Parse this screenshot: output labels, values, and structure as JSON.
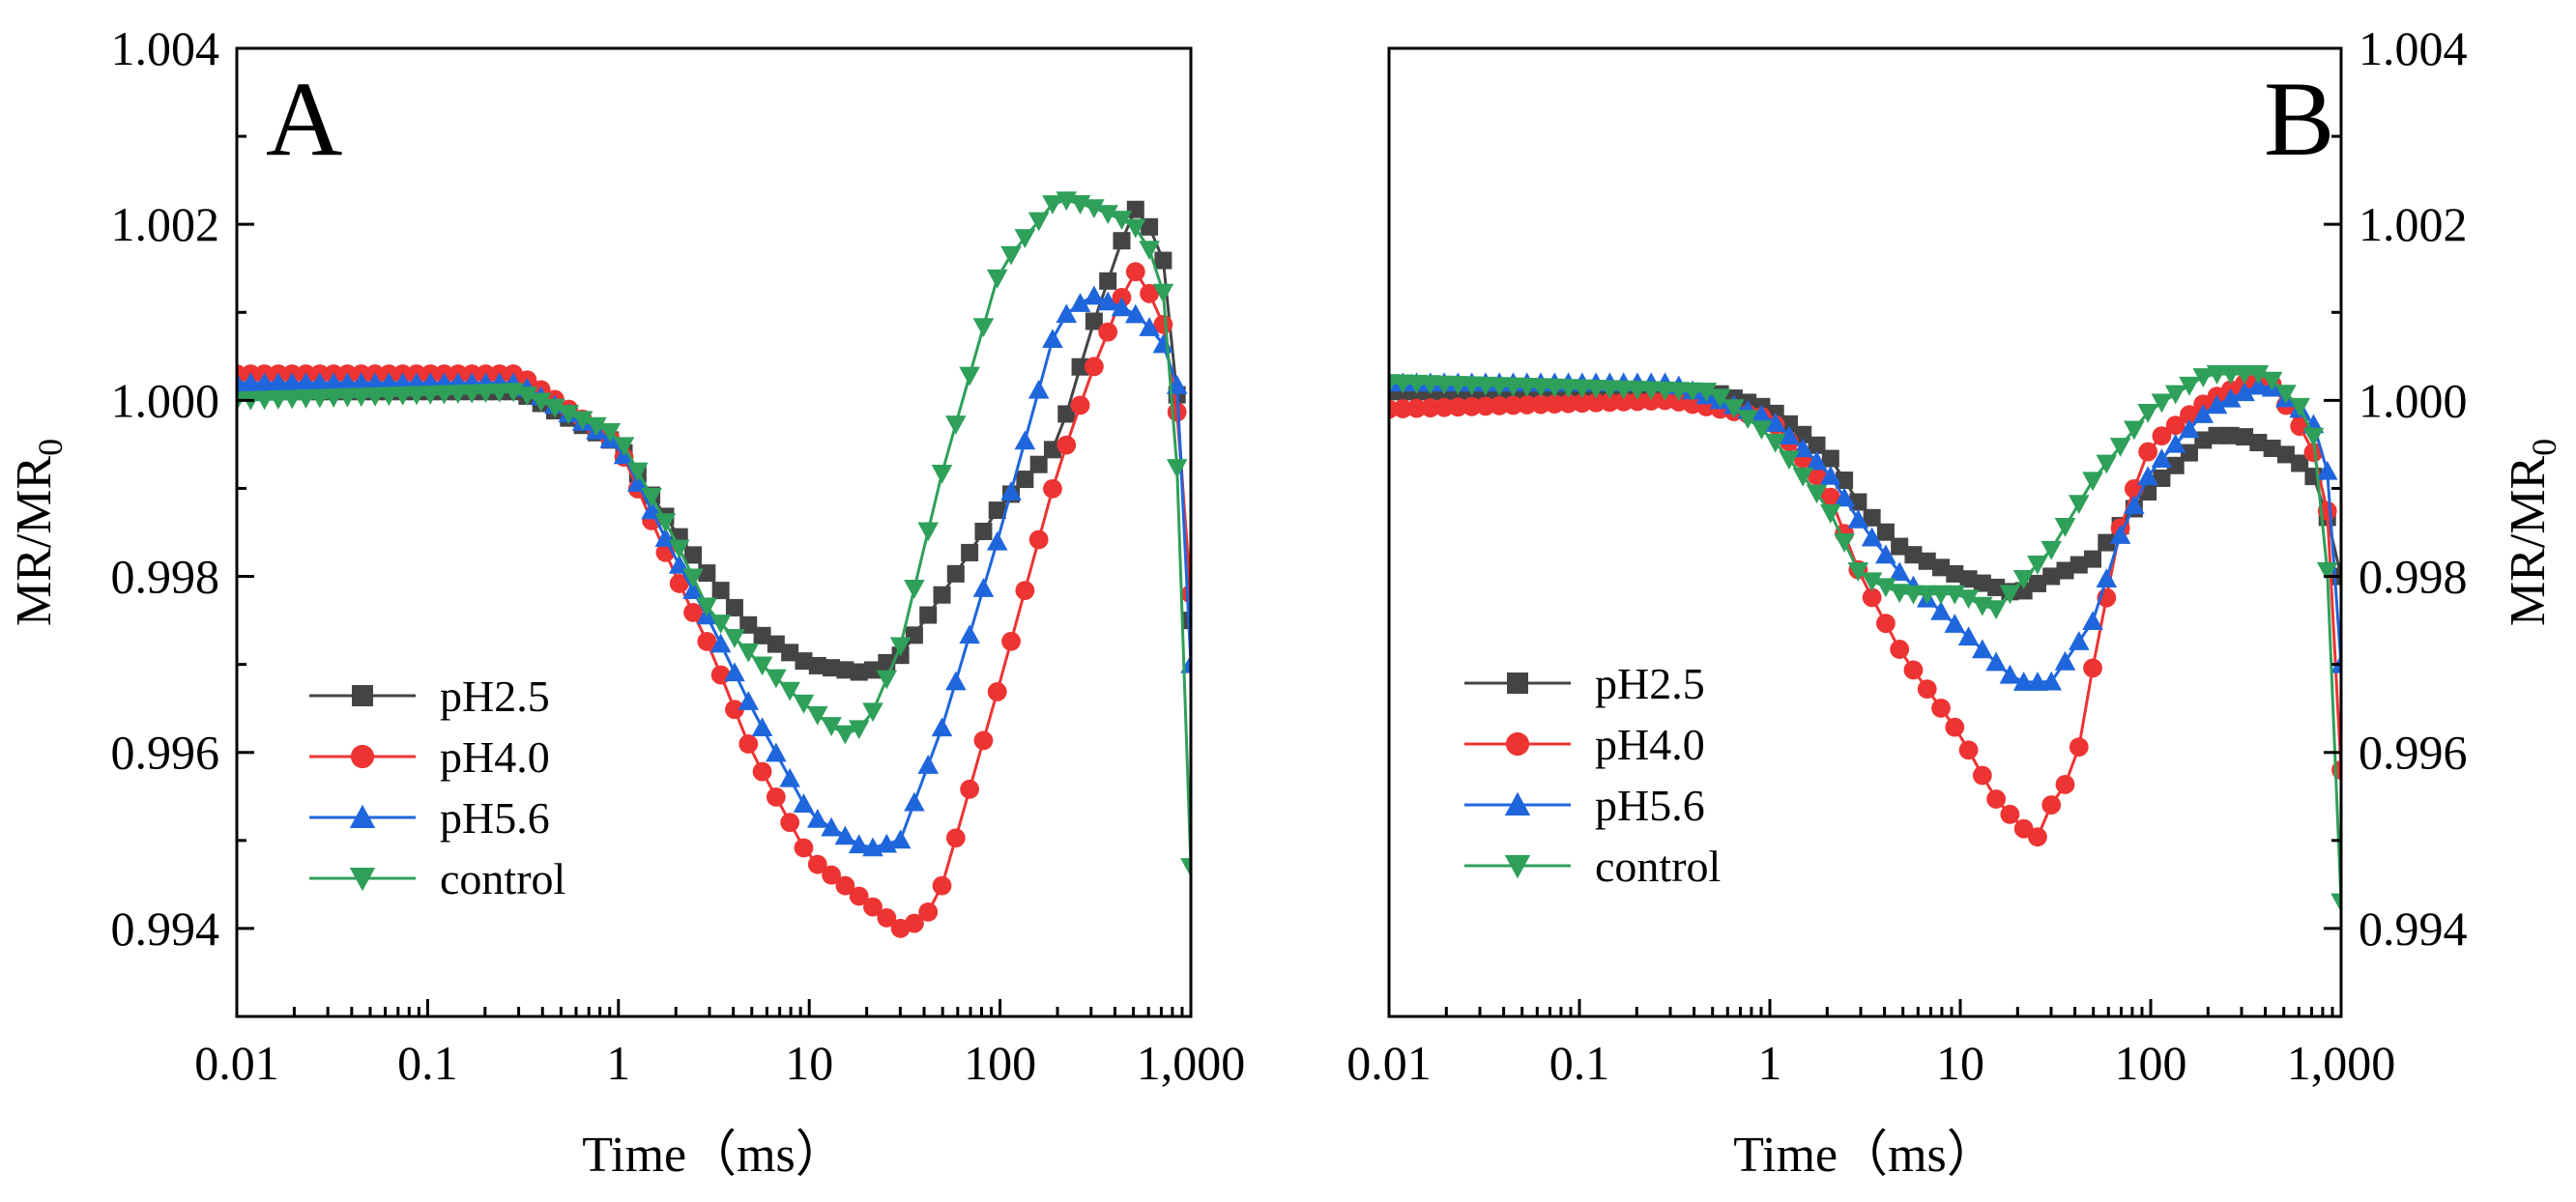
{
  "chart_data": [
    {
      "type": "line",
      "panel_label": "A",
      "xlabel": "Time（ms）",
      "ylabel": "MR/MR",
      "ylabel_subscript": "0",
      "x_scale": "log",
      "xlim": [
        0.01,
        1000
      ],
      "ylim": [
        0.993,
        1.004
      ],
      "x_ticks": [
        0.01,
        0.1,
        1,
        10,
        100,
        1000
      ],
      "x_tick_labels": [
        "0.01",
        "0.1",
        "1",
        "10",
        "100",
        "1,000"
      ],
      "y_ticks": [
        0.994,
        0.996,
        0.998,
        1.0,
        1.002,
        1.004
      ],
      "y_tick_labels": [
        "0.994",
        "0.996",
        "0.998",
        "1.000",
        "1.002",
        "1.004"
      ],
      "y_axis_side": "left",
      "legend_position": "lower-left",
      "series": [
        {
          "name": "pH2.5",
          "color": "#444444",
          "marker": "square",
          "x": [
            0.01,
            0.3,
            1,
            2,
            3,
            5,
            10,
            20,
            30,
            50,
            100,
            200,
            300,
            500,
            700,
            900,
            1000
          ],
          "y": [
            1.0001,
            1.0001,
            0.9995,
            0.9985,
            0.998,
            0.9974,
            0.997,
            0.9969,
            0.9971,
            0.9978,
            0.9988,
            0.9995,
            1.0008,
            1.0022,
            1.0018,
            0.9995,
            0.9975
          ]
        },
        {
          "name": "pH4.0",
          "color": "#ee3333",
          "marker": "circle",
          "x": [
            0.01,
            0.3,
            1,
            2,
            3,
            5,
            10,
            20,
            30,
            40,
            50,
            100,
            200,
            300,
            500,
            700,
            900,
            1000
          ],
          "y": [
            1.0003,
            1.0003,
            0.9995,
            0.998,
            0.9972,
            0.996,
            0.9948,
            0.9943,
            0.994,
            0.9941,
            0.9945,
            0.9968,
            0.9992,
            1.0003,
            1.0015,
            1.001,
            0.9995,
            0.9978
          ]
        },
        {
          "name": "pH5.6",
          "color": "#1f66dd",
          "marker": "triangle-up",
          "x": [
            0.01,
            0.3,
            1,
            2,
            3,
            5,
            10,
            20,
            30,
            50,
            100,
            200,
            300,
            500,
            700,
            900,
            1000
          ],
          "y": [
            1.0002,
            1.0002,
            0.9995,
            0.9982,
            0.9975,
            0.9965,
            0.9953,
            0.9949,
            0.995,
            0.9963,
            0.9985,
            1.0009,
            1.0012,
            1.001,
            1.0007,
            1.0,
            0.997
          ]
        },
        {
          "name": "control",
          "color": "#2ea05a",
          "marker": "triangle-down",
          "x": [
            0.01,
            0.3,
            1,
            2,
            3,
            5,
            10,
            15,
            20,
            30,
            50,
            100,
            200,
            300,
            500,
            700,
            900,
            1000
          ],
          "y": [
            1.0,
            1.0001,
            0.9996,
            0.9984,
            0.9976,
            0.9971,
            0.9965,
            0.9962,
            0.9963,
            0.9972,
            0.9992,
            1.0015,
            1.0023,
            1.0022,
            1.002,
            1.0015,
            0.9985,
            0.9947
          ]
        }
      ]
    },
    {
      "type": "line",
      "panel_label": "B",
      "xlabel": "Time（ms）",
      "ylabel": "MR/MR",
      "ylabel_subscript": "0",
      "x_scale": "log",
      "xlim": [
        0.01,
        1000
      ],
      "ylim": [
        0.993,
        1.004
      ],
      "x_ticks": [
        0.01,
        0.1,
        1,
        10,
        100,
        1000
      ],
      "x_tick_labels": [
        "0.01",
        "0.1",
        "1",
        "10",
        "100",
        "1,000"
      ],
      "y_ticks": [
        0.994,
        0.996,
        0.998,
        1.0,
        1.002,
        1.004
      ],
      "y_tick_labels": [
        "0.994",
        "0.996",
        "0.998",
        "1.000",
        "1.002",
        "1.004"
      ],
      "y_axis_side": "right",
      "legend_position": "lower-left",
      "series": [
        {
          "name": "pH2.5",
          "color": "#444444",
          "marker": "square",
          "x": [
            0.01,
            0.5,
            1,
            2,
            3,
            5,
            10,
            20,
            30,
            50,
            100,
            200,
            300,
            500,
            700,
            900,
            1000
          ],
          "y": [
            1.0001,
            1.0001,
            0.9999,
            0.9994,
            0.9988,
            0.9983,
            0.998,
            0.9978,
            0.998,
            0.9982,
            0.999,
            0.9996,
            0.9996,
            0.9994,
            0.9992,
            0.9985,
            0.998
          ]
        },
        {
          "name": "pH4.0",
          "color": "#ee3333",
          "marker": "circle",
          "x": [
            0.01,
            0.3,
            1,
            2,
            3,
            5,
            10,
            15,
            20,
            25,
            30,
            40,
            50,
            70,
            100,
            200,
            400,
            700,
            900,
            1000
          ],
          "y": [
            0.9999,
            1.0,
            0.9998,
            0.999,
            0.998,
            0.9971,
            0.9962,
            0.9955,
            0.9952,
            0.995,
            0.9954,
            0.9958,
            0.997,
            0.9986,
            0.9995,
            1.0,
            1.0003,
            0.9995,
            0.9985,
            0.9958
          ]
        },
        {
          "name": "pH5.6",
          "color": "#1f66dd",
          "marker": "triangle-up",
          "x": [
            0.01,
            0.3,
            1,
            2,
            3,
            5,
            10,
            20,
            30,
            50,
            70,
            100,
            200,
            400,
            700,
            900,
            1000
          ],
          "y": [
            1.0002,
            1.0002,
            0.9998,
            0.9992,
            0.9986,
            0.998,
            0.9974,
            0.9968,
            0.9968,
            0.9975,
            0.9985,
            0.9992,
            0.9999,
            1.0002,
            0.9998,
            0.999,
            0.997
          ]
        },
        {
          "name": "control",
          "color": "#2ea05a",
          "marker": "triangle-down",
          "x": [
            0.01,
            0.5,
            1,
            2,
            3,
            5,
            10,
            15,
            20,
            30,
            50,
            100,
            200,
            400,
            700,
            900,
            1000
          ],
          "y": [
            1.0002,
            1.0001,
            0.9996,
            0.9988,
            0.998,
            0.9978,
            0.9978,
            0.9976,
            0.9979,
            0.9983,
            0.9991,
            0.9999,
            1.0003,
            1.0003,
            0.9998,
            0.9975,
            0.9943
          ]
        }
      ]
    }
  ]
}
